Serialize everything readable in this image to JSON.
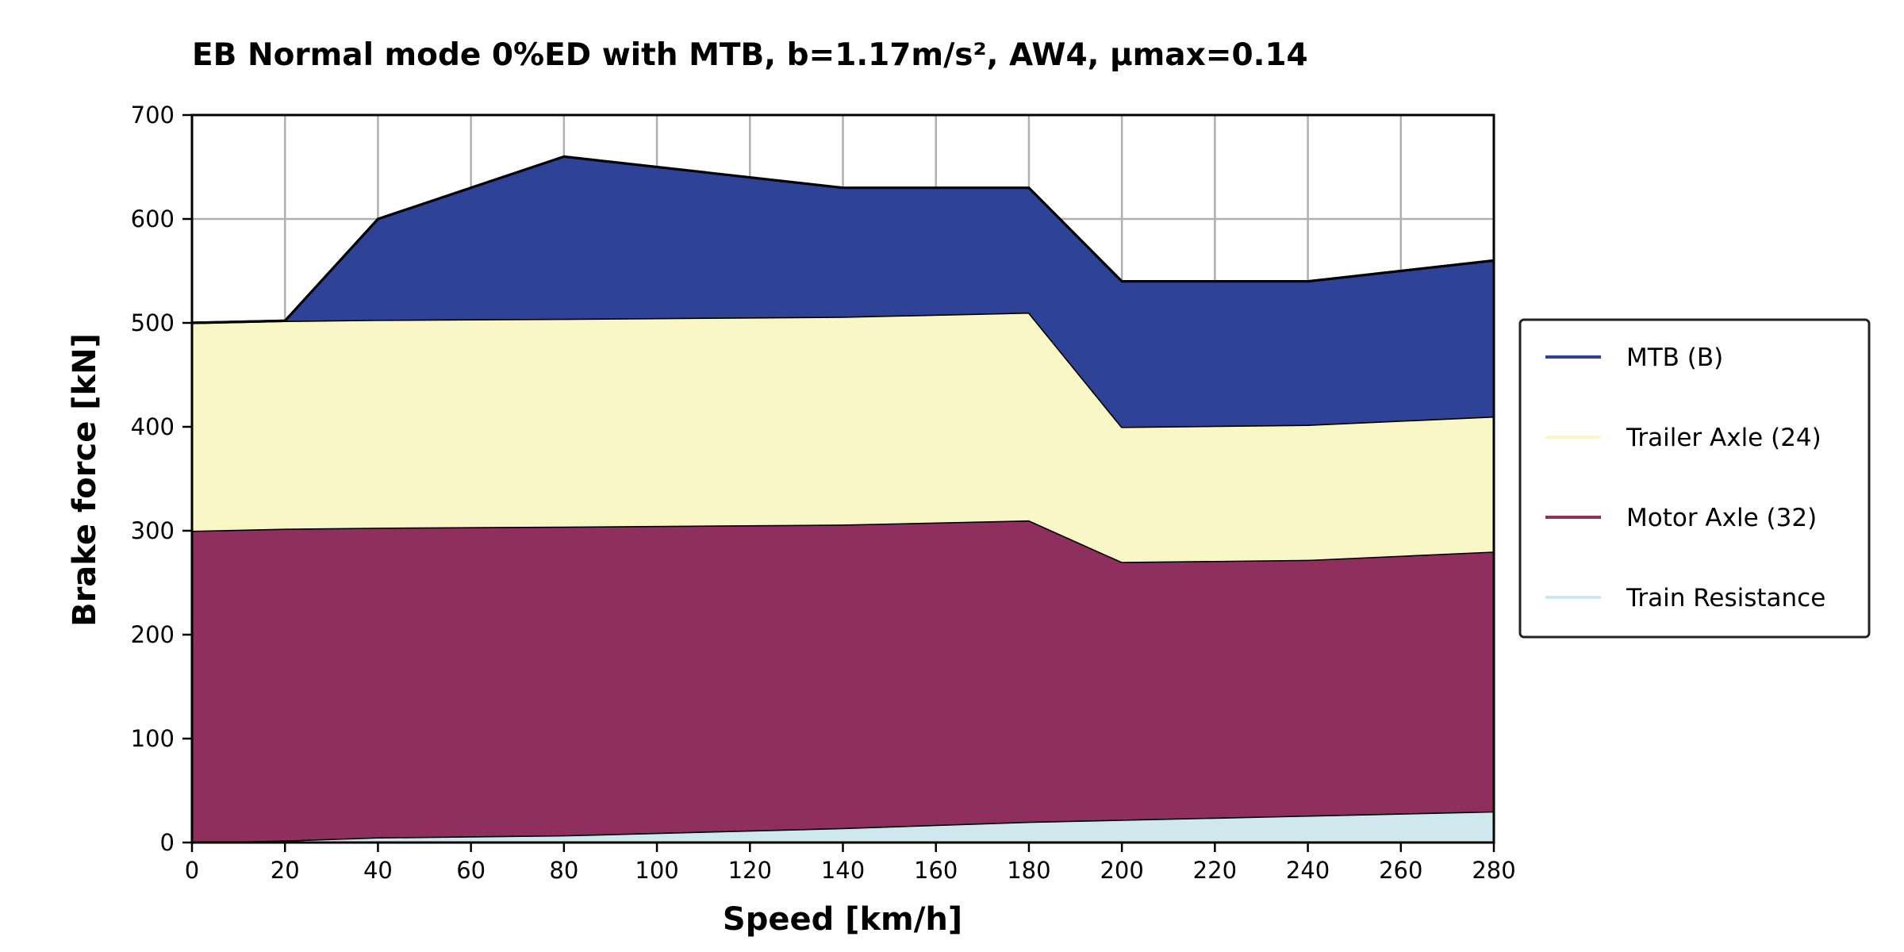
{
  "chart_data": {
    "type": "area",
    "title": "EB Normal mode 0%ED with MTB, b=1.17m/s², AW4, μmax=0.14",
    "xlabel": "Speed [km/h]",
    "ylabel": "Brake force [kN]",
    "xlim": [
      0,
      280
    ],
    "ylim": [
      0,
      700
    ],
    "xticks": [
      0,
      20,
      40,
      60,
      80,
      100,
      120,
      140,
      160,
      180,
      200,
      220,
      240,
      260,
      280
    ],
    "yticks": [
      0,
      100,
      200,
      300,
      400,
      500,
      600,
      700
    ],
    "grid": true,
    "stacked": true,
    "legend_position": "right",
    "x": [
      0,
      20,
      40,
      80,
      140,
      180,
      200,
      240,
      280
    ],
    "series": [
      {
        "name": "Train Resistance",
        "color": "#cfe8ed",
        "values": [
          0,
          2,
          5,
          7,
          14,
          20,
          22,
          26,
          30
        ]
      },
      {
        "name": "Motor Axle (32)",
        "color": "#8f2f5e",
        "values": [
          300,
          300,
          298,
          297,
          292,
          290,
          248,
          246,
          250
        ]
      },
      {
        "name": "Trailer Axle (24)",
        "color": "#f8f7c5",
        "values": [
          200,
          200,
          200,
          200,
          200,
          200,
          130,
          130,
          130
        ]
      },
      {
        "name": "MTB (B)",
        "color": "#2e4398",
        "values": [
          0,
          0,
          97,
          156,
          124,
          120,
          140,
          138,
          150
        ]
      }
    ],
    "legend": [
      "MTB (B)",
      "Trailer Axle (24)",
      "Motor Axle (32)",
      "Train Resistance"
    ]
  }
}
